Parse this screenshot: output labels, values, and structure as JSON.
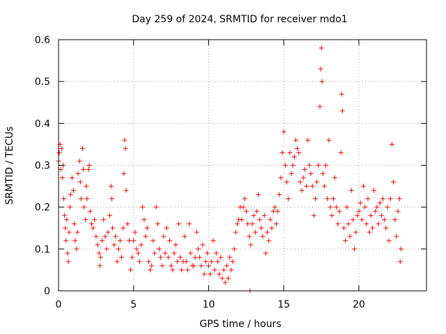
{
  "chart_data": {
    "type": "scatter",
    "title": "Day 259 of 2024, SRMTID for receiver mdo1",
    "xlabel": "GPS time / hours",
    "ylabel": "SRMTID / TECUs",
    "xlim": [
      0,
      24.5
    ],
    "ylim": [
      0,
      0.6
    ],
    "x_ticks": [
      0,
      5,
      10,
      15,
      20
    ],
    "x_tick_labels": [
      "0",
      "5",
      "10",
      "15",
      "20"
    ],
    "y_ticks": [
      0,
      0.1,
      0.2,
      0.3,
      0.4,
      0.5,
      0.6
    ],
    "y_tick_labels": [
      "0",
      "0.1",
      "0.2",
      "0.3",
      "0.4",
      "0.5",
      "0.6"
    ],
    "grid": true,
    "marker": "+",
    "series": [
      {
        "name": "SRMTID",
        "color": "#ff0000",
        "points": [
          [
            0.0,
            0.31
          ],
          [
            0.05,
            0.33
          ],
          [
            0.1,
            0.35
          ],
          [
            0.15,
            0.29
          ],
          [
            0.2,
            0.34
          ],
          [
            0.25,
            0.27
          ],
          [
            0.3,
            0.3
          ],
          [
            0.35,
            0.22
          ],
          [
            0.4,
            0.18
          ],
          [
            0.45,
            0.15
          ],
          [
            0.5,
            0.12
          ],
          [
            0.55,
            0.17
          ],
          [
            0.6,
            0.09
          ],
          [
            0.65,
            0.07
          ],
          [
            0.7,
            0.14
          ],
          [
            0.75,
            0.2
          ],
          [
            0.8,
            0.23
          ],
          [
            0.9,
            0.27
          ],
          [
            1.0,
            0.24
          ],
          [
            1.05,
            0.16
          ],
          [
            1.1,
            0.12
          ],
          [
            1.2,
            0.1
          ],
          [
            1.25,
            0.14
          ],
          [
            1.3,
            0.28
          ],
          [
            1.4,
            0.31
          ],
          [
            1.45,
            0.26
          ],
          [
            1.5,
            0.22
          ],
          [
            1.6,
            0.34
          ],
          [
            1.65,
            0.29
          ],
          [
            1.7,
            0.2
          ],
          [
            1.8,
            0.17
          ],
          [
            1.85,
            0.25
          ],
          [
            1.9,
            0.22
          ],
          [
            2.0,
            0.29
          ],
          [
            2.05,
            0.3
          ],
          [
            2.1,
            0.19
          ],
          [
            2.2,
            0.16
          ],
          [
            2.3,
            0.15
          ],
          [
            2.4,
            0.17
          ],
          [
            2.5,
            0.13
          ],
          [
            2.6,
            0.11
          ],
          [
            2.7,
            0.09
          ],
          [
            2.75,
            0.06
          ],
          [
            2.8,
            0.08
          ],
          [
            2.9,
            0.12
          ],
          [
            3.0,
            0.17
          ],
          [
            3.1,
            0.13
          ],
          [
            3.2,
            0.1
          ],
          [
            3.3,
            0.14
          ],
          [
            3.4,
            0.18
          ],
          [
            3.5,
            0.25
          ],
          [
            3.55,
            0.22
          ],
          [
            3.6,
            0.15
          ],
          [
            3.7,
            0.11
          ],
          [
            3.8,
            0.13
          ],
          [
            3.9,
            0.07
          ],
          [
            4.0,
            0.1
          ],
          [
            4.1,
            0.12
          ],
          [
            4.2,
            0.08
          ],
          [
            4.3,
            0.15
          ],
          [
            4.35,
            0.28
          ],
          [
            4.4,
            0.36
          ],
          [
            4.45,
            0.34
          ],
          [
            4.5,
            0.24
          ],
          [
            4.6,
            0.16
          ],
          [
            4.7,
            0.12
          ],
          [
            4.8,
            0.05
          ],
          [
            4.9,
            0.08
          ],
          [
            5.0,
            0.12
          ],
          [
            5.1,
            0.14
          ],
          [
            5.2,
            0.1
          ],
          [
            5.3,
            0.09
          ],
          [
            5.4,
            0.07
          ],
          [
            5.5,
            0.11
          ],
          [
            5.6,
            0.2
          ],
          [
            5.7,
            0.17
          ],
          [
            5.8,
            0.13
          ],
          [
            5.9,
            0.15
          ],
          [
            6.0,
            0.07
          ],
          [
            6.1,
            0.05
          ],
          [
            6.2,
            0.06
          ],
          [
            6.3,
            0.12
          ],
          [
            6.4,
            0.09
          ],
          [
            6.5,
            0.2
          ],
          [
            6.6,
            0.16
          ],
          [
            6.7,
            0.1
          ],
          [
            6.8,
            0.08
          ],
          [
            6.9,
            0.06
          ],
          [
            7.0,
            0.13
          ],
          [
            7.1,
            0.09
          ],
          [
            7.2,
            0.15
          ],
          [
            7.3,
            0.08
          ],
          [
            7.4,
            0.12
          ],
          [
            7.5,
            0.06
          ],
          [
            7.6,
            0.05
          ],
          [
            7.7,
            0.09
          ],
          [
            7.8,
            0.11
          ],
          [
            7.9,
            0.07
          ],
          [
            8.0,
            0.16
          ],
          [
            8.1,
            0.08
          ],
          [
            8.2,
            0.05
          ],
          [
            8.3,
            0.07
          ],
          [
            8.4,
            0.13
          ],
          [
            8.5,
            0.07
          ],
          [
            8.6,
            0.05
          ],
          [
            8.7,
            0.16
          ],
          [
            8.8,
            0.09
          ],
          [
            8.9,
            0.06
          ],
          [
            9.0,
            0.06
          ],
          [
            9.1,
            0.08
          ],
          [
            9.2,
            0.14
          ],
          [
            9.3,
            0.1
          ],
          [
            9.4,
            0.08
          ],
          [
            9.5,
            0.06
          ],
          [
            9.6,
            0.11
          ],
          [
            9.7,
            0.04
          ],
          [
            9.8,
            0.07
          ],
          [
            9.9,
            0.09
          ],
          [
            10.0,
            0.06
          ],
          [
            10.1,
            0.04
          ],
          [
            10.2,
            0.07
          ],
          [
            10.3,
            0.12
          ],
          [
            10.4,
            0.05
          ],
          [
            10.5,
            0.09
          ],
          [
            10.6,
            0.07
          ],
          [
            10.7,
            0.04
          ],
          [
            10.8,
            0.08
          ],
          [
            10.9,
            0.03
          ],
          [
            11.0,
            0.05
          ],
          [
            11.1,
            0.02
          ],
          [
            11.2,
            0.06
          ],
          [
            11.3,
            0.03
          ],
          [
            11.4,
            0.08
          ],
          [
            11.5,
            0.05
          ],
          [
            11.6,
            0.07
          ],
          [
            11.7,
            0.1
          ],
          [
            11.8,
            0.14
          ],
          [
            11.9,
            0.16
          ],
          [
            12.0,
            0.17
          ],
          [
            12.1,
            0.2
          ],
          [
            12.2,
            0.17
          ],
          [
            12.3,
            0.2
          ],
          [
            12.4,
            0.22
          ],
          [
            12.5,
            0.19
          ],
          [
            12.6,
            0.16
          ],
          [
            12.7,
            0.13
          ],
          [
            12.75,
            0.0
          ],
          [
            12.8,
            0.11
          ],
          [
            12.9,
            0.16
          ],
          [
            13.0,
            0.18
          ],
          [
            13.1,
            0.14
          ],
          [
            13.2,
            0.19
          ],
          [
            13.3,
            0.23
          ],
          [
            13.4,
            0.17
          ],
          [
            13.5,
            0.15
          ],
          [
            13.6,
            0.13
          ],
          [
            13.7,
            0.18
          ],
          [
            13.8,
            0.09
          ],
          [
            13.9,
            0.14
          ],
          [
            14.0,
            0.12
          ],
          [
            14.1,
            0.17
          ],
          [
            14.2,
            0.15
          ],
          [
            14.3,
            0.19
          ],
          [
            14.4,
            0.2
          ],
          [
            14.5,
            0.16
          ],
          [
            14.6,
            0.19
          ],
          [
            14.7,
            0.23
          ],
          [
            14.8,
            0.27
          ],
          [
            14.9,
            0.33
          ],
          [
            15.0,
            0.38
          ],
          [
            15.1,
            0.3
          ],
          [
            15.2,
            0.26
          ],
          [
            15.3,
            0.22
          ],
          [
            15.4,
            0.33
          ],
          [
            15.5,
            0.28
          ],
          [
            15.6,
            0.3
          ],
          [
            15.7,
            0.32
          ],
          [
            15.8,
            0.36
          ],
          [
            15.9,
            0.34
          ],
          [
            16.0,
            0.33
          ],
          [
            16.1,
            0.26
          ],
          [
            16.2,
            0.24
          ],
          [
            16.3,
            0.27
          ],
          [
            16.4,
            0.29
          ],
          [
            16.5,
            0.25
          ],
          [
            16.6,
            0.36
          ],
          [
            16.7,
            0.3
          ],
          [
            16.8,
            0.28
          ],
          [
            16.9,
            0.25
          ],
          [
            17.0,
            0.18
          ],
          [
            17.1,
            0.22
          ],
          [
            17.2,
            0.26
          ],
          [
            17.3,
            0.3
          ],
          [
            17.4,
            0.44
          ],
          [
            17.45,
            0.53
          ],
          [
            17.5,
            0.58
          ],
          [
            17.55,
            0.5
          ],
          [
            17.6,
            0.28
          ],
          [
            17.7,
            0.25
          ],
          [
            17.8,
            0.3
          ],
          [
            17.9,
            0.22
          ],
          [
            18.0,
            0.36
          ],
          [
            18.1,
            0.2
          ],
          [
            18.2,
            0.18
          ],
          [
            18.3,
            0.22
          ],
          [
            18.4,
            0.27
          ],
          [
            18.5,
            0.2
          ],
          [
            18.6,
            0.16
          ],
          [
            18.7,
            0.19
          ],
          [
            18.8,
            0.33
          ],
          [
            18.85,
            0.47
          ],
          [
            18.9,
            0.43
          ],
          [
            19.0,
            0.15
          ],
          [
            19.1,
            0.12
          ],
          [
            19.2,
            0.2
          ],
          [
            19.3,
            0.16
          ],
          [
            19.4,
            0.13
          ],
          [
            19.5,
            0.24
          ],
          [
            19.6,
            0.17
          ],
          [
            19.7,
            0.1
          ],
          [
            19.8,
            0.14
          ],
          [
            19.9,
            0.18
          ],
          [
            20.0,
            0.19
          ],
          [
            20.1,
            0.21
          ],
          [
            20.2,
            0.17
          ],
          [
            20.3,
            0.25
          ],
          [
            20.4,
            0.2
          ],
          [
            20.5,
            0.16
          ],
          [
            20.6,
            0.22
          ],
          [
            20.7,
            0.14
          ],
          [
            20.8,
            0.18
          ],
          [
            20.9,
            0.15
          ],
          [
            21.0,
            0.24
          ],
          [
            21.1,
            0.19
          ],
          [
            21.2,
            0.2
          ],
          [
            21.3,
            0.16
          ],
          [
            21.4,
            0.21
          ],
          [
            21.5,
            0.18
          ],
          [
            21.6,
            0.22
          ],
          [
            21.7,
            0.17
          ],
          [
            21.8,
            0.15
          ],
          [
            21.9,
            0.2
          ],
          [
            22.0,
            0.12
          ],
          [
            22.1,
            0.22
          ],
          [
            22.2,
            0.35
          ],
          [
            22.3,
            0.26
          ],
          [
            22.4,
            0.17
          ],
          [
            22.5,
            0.13
          ],
          [
            22.6,
            0.19
          ],
          [
            22.7,
            0.22
          ],
          [
            22.75,
            0.07
          ],
          [
            22.8,
            0.1
          ]
        ]
      }
    ]
  }
}
